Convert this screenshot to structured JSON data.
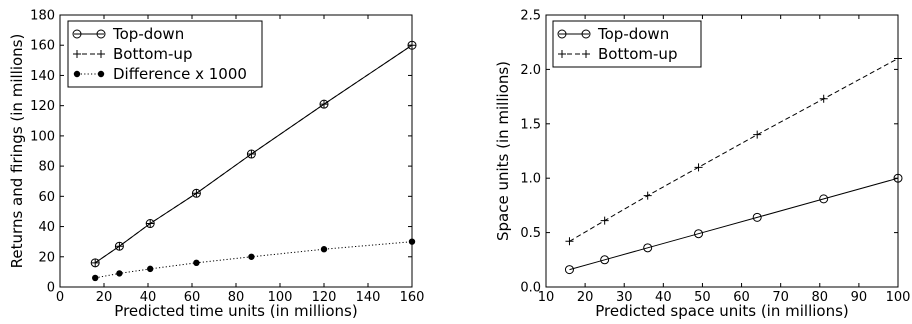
{
  "chart_data": [
    {
      "type": "line",
      "title": "",
      "xlabel": "Predicted time units (in millions)",
      "ylabel": "Returns and firings (in millions)",
      "xlim": [
        0,
        160
      ],
      "ylim": [
        0,
        180
      ],
      "xticks": [
        0,
        20,
        40,
        60,
        80,
        100,
        120,
        140,
        160
      ],
      "yticks": [
        0,
        20,
        40,
        60,
        80,
        100,
        120,
        140,
        160,
        180
      ],
      "grid": false,
      "legend_position": "top-left",
      "series": [
        {
          "name": "Top-down",
          "style": "solid",
          "marker": "open-circle",
          "color": "#000000",
          "x": [
            16,
            27,
            41,
            62,
            87,
            120,
            160
          ],
          "y": [
            16,
            27,
            42,
            62,
            88,
            121,
            160
          ]
        },
        {
          "name": "Bottom-up",
          "style": "dashed",
          "marker": "plus",
          "color": "#000000",
          "x": [
            16,
            27,
            41,
            62,
            87,
            120,
            160
          ],
          "y": [
            16,
            27,
            42,
            62,
            88,
            121,
            160
          ]
        },
        {
          "name": "Difference x 1000",
          "style": "dotted",
          "marker": "filled-circle",
          "color": "#000000",
          "x": [
            16,
            27,
            41,
            62,
            87,
            120,
            160
          ],
          "y": [
            6,
            9,
            12,
            16,
            20,
            25,
            30
          ]
        }
      ]
    },
    {
      "type": "line",
      "title": "",
      "xlabel": "Predicted space units (in millions)",
      "ylabel": "Space units (in millions)",
      "xlim": [
        10,
        100
      ],
      "ylim": [
        0,
        2.5
      ],
      "xticks": [
        10,
        20,
        30,
        40,
        50,
        60,
        70,
        80,
        90,
        100
      ],
      "yticks": [
        0.0,
        0.5,
        1.0,
        1.5,
        2.0,
        2.5
      ],
      "ytick_labels": [
        "0.0",
        "0.5",
        "1.0",
        "1.5",
        "2.0",
        "2.5"
      ],
      "grid": false,
      "legend_position": "top-left",
      "series": [
        {
          "name": "Top-down",
          "style": "solid",
          "marker": "open-circle",
          "color": "#000000",
          "x": [
            16,
            25,
            36,
            49,
            64,
            81,
            100
          ],
          "y": [
            0.16,
            0.25,
            0.36,
            0.49,
            0.64,
            0.81,
            1.0
          ]
        },
        {
          "name": "Bottom-up",
          "style": "dashed",
          "marker": "plus",
          "color": "#000000",
          "x": [
            16,
            25,
            36,
            49,
            64,
            81,
            100
          ],
          "y": [
            0.42,
            0.61,
            0.84,
            1.1,
            1.4,
            1.73,
            2.1
          ]
        }
      ]
    }
  ]
}
